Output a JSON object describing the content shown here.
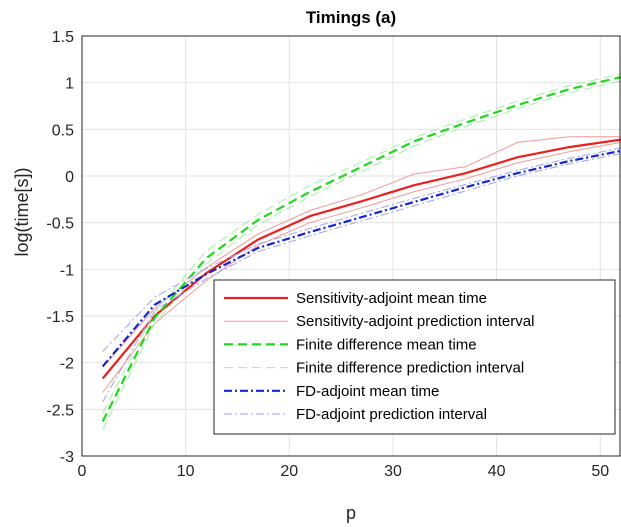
{
  "chart_data": {
    "type": "line",
    "title": "Timings (a)",
    "xlabel": "p",
    "ylabel": "log(time[s])",
    "xlim": [
      0,
      52
    ],
    "ylim": [
      -3,
      1.5
    ],
    "xticks": [
      0,
      10,
      20,
      30,
      40,
      50
    ],
    "yticks": [
      -3,
      -2.5,
      -2,
      -1.5,
      -1,
      -0.5,
      0,
      0.5,
      1,
      1.5
    ],
    "xtick_labels": [
      "0",
      "10",
      "20",
      "30",
      "40",
      "50"
    ],
    "ytick_labels": [
      "-3",
      "-2.5",
      "-2",
      "-1.5",
      "-1",
      "-0.5",
      "0",
      "0.5",
      "1",
      "1.5"
    ],
    "grid": true,
    "legend_position": "bottom-right",
    "x": [
      2,
      7,
      12,
      17,
      22,
      27,
      32,
      37,
      42,
      47,
      52
    ],
    "series": [
      {
        "name": "Sensitivity-adjoint mean time",
        "color": "#e8201e",
        "dash": "solid",
        "width": 2.2,
        "values": [
          -2.17,
          -1.5,
          -1.04,
          -0.68,
          -0.43,
          -0.27,
          -0.1,
          0.03,
          0.2,
          0.31,
          0.39
        ]
      },
      {
        "name": "Sensitivity-adjoint prediction interval",
        "color": "#f19a98",
        "dash": "solid",
        "width": 1,
        "values_lower": [
          -2.32,
          -1.58,
          -1.12,
          -0.74,
          -0.5,
          -0.34,
          -0.17,
          -0.03,
          0.14,
          0.26,
          0.36
        ],
        "values_upper": [
          -2.05,
          -1.42,
          -0.98,
          -0.62,
          -0.37,
          -0.2,
          0.02,
          0.1,
          0.36,
          0.42,
          0.42
        ]
      },
      {
        "name": "Finite difference mean time",
        "color": "#1ed91e",
        "dash": "dashed",
        "width": 2.2,
        "values": [
          -2.63,
          -1.52,
          -0.88,
          -0.47,
          -0.17,
          0.1,
          0.37,
          0.57,
          0.76,
          0.93,
          1.06
        ]
      },
      {
        "name": "Finite difference prediction interval",
        "color": "#a4eea4",
        "dash": "dashed",
        "width": 1,
        "values_lower": [
          -2.72,
          -1.58,
          -0.94,
          -0.52,
          -0.22,
          0.05,
          0.32,
          0.53,
          0.72,
          0.89,
          1.02
        ],
        "values_upper": [
          -2.54,
          -1.46,
          -0.8,
          -0.41,
          -0.1,
          0.15,
          0.41,
          0.61,
          0.8,
          0.97,
          1.09
        ]
      },
      {
        "name": "FD-adjoint mean time",
        "color": "#1426d0",
        "dash": "dashdot",
        "width": 2.2,
        "values": [
          -2.04,
          -1.38,
          -1.05,
          -0.77,
          -0.6,
          -0.44,
          -0.28,
          -0.12,
          0.03,
          0.16,
          0.27
        ]
      },
      {
        "name": "FD-adjoint prediction interval",
        "color": "#9ea4f0",
        "dash": "dashdot",
        "width": 1,
        "values_lower": [
          -2.42,
          -1.44,
          -1.1,
          -0.81,
          -0.64,
          -0.48,
          -0.32,
          -0.16,
          0.0,
          0.13,
          0.24
        ],
        "values_upper": [
          -1.88,
          -1.3,
          -0.99,
          -0.73,
          -0.56,
          -0.4,
          -0.24,
          -0.09,
          0.06,
          0.19,
          0.3
        ]
      }
    ]
  }
}
